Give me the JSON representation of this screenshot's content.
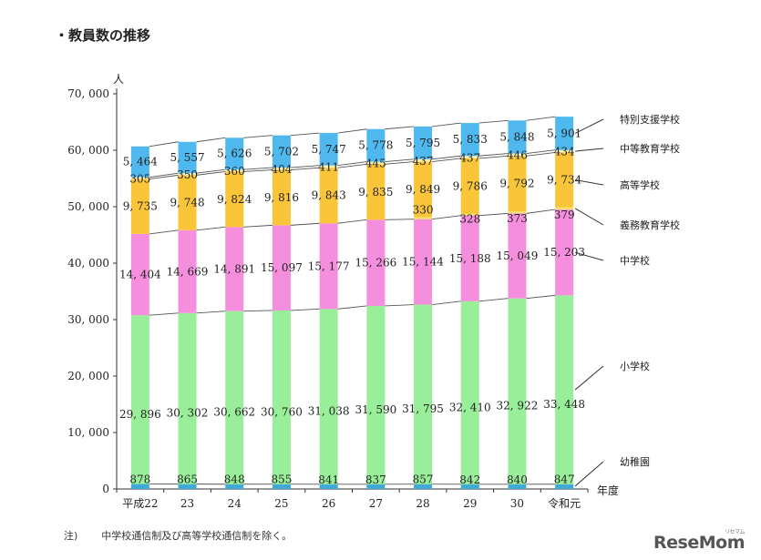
{
  "heading": "・教員数の推移",
  "note": {
    "marker": "注)",
    "text": "中学校通信制及び高等学校通信制を除く。"
  },
  "watermark": {
    "text": "ReseMom",
    "small": "リセマム"
  },
  "chart_data": {
    "type": "bar",
    "stacked": true,
    "ylabel": "人",
    "xlabel": "年度",
    "ylim": [
      0,
      70000
    ],
    "yticks": [
      0,
      10000,
      20000,
      30000,
      40000,
      50000,
      60000,
      70000
    ],
    "ytick_labels": [
      "0",
      "10, 000",
      "20, 000",
      "30, 000",
      "40, 000",
      "50, 000",
      "60, 000",
      "70, 000"
    ],
    "categories": [
      "平成22",
      "23",
      "24",
      "25",
      "26",
      "27",
      "28",
      "29",
      "30",
      "令和元"
    ],
    "series": [
      {
        "name": "幼稚園",
        "color": "#3fa9d8",
        "values": [
          878,
          865,
          848,
          855,
          841,
          837,
          857,
          842,
          840,
          847
        ],
        "labels": [
          "878",
          "865",
          "848",
          "855",
          "841",
          "837",
          "857",
          "842",
          "840",
          "847"
        ]
      },
      {
        "name": "小学校",
        "color": "#99ee99",
        "values": [
          29896,
          30302,
          30662,
          30760,
          31038,
          31590,
          31795,
          32410,
          32922,
          33448
        ],
        "labels": [
          "29, 896",
          "30, 302",
          "30, 662",
          "30, 760",
          "31, 038",
          "31, 590",
          "31, 795",
          "32, 410",
          "32, 922",
          "33, 448"
        ]
      },
      {
        "name": "中学校",
        "color": "#f58edc",
        "values": [
          14404,
          14669,
          14891,
          15097,
          15177,
          15266,
          15144,
          15188,
          15049,
          15203
        ],
        "labels": [
          "14, 404",
          "14, 669",
          "14, 891",
          "15, 097",
          "15, 177",
          "15, 266",
          "15, 144",
          "15, 188",
          "15, 049",
          "15, 203"
        ]
      },
      {
        "name": "義務教育学校",
        "color": "#f7e06a",
        "values": [
          0,
          0,
          0,
          0,
          0,
          0,
          330,
          328,
          373,
          379
        ],
        "labels": [
          "",
          "",
          "",
          "",
          "",
          "",
          "330",
          "328",
          "373",
          "379"
        ]
      },
      {
        "name": "高等学校",
        "color": "#fbc53a",
        "values": [
          9735,
          9748,
          9824,
          9816,
          9843,
          9835,
          9849,
          9786,
          9792,
          9734
        ],
        "labels": [
          "9, 735",
          "9, 748",
          "9, 824",
          "9, 816",
          "9, 843",
          "9, 835",
          "9, 849",
          "9, 786",
          "9, 792",
          "9, 734"
        ]
      },
      {
        "name": "中等教育学校",
        "color": "#f9f0b0",
        "values": [
          305,
          350,
          360,
          404,
          411,
          445,
          437,
          437,
          446,
          434
        ],
        "labels": [
          "305",
          "350",
          "360",
          "404",
          "411",
          "445",
          "437",
          "437",
          "446",
          "434"
        ]
      },
      {
        "name": "特別支援学校",
        "color": "#4fb8ee",
        "values": [
          5464,
          5557,
          5626,
          5702,
          5747,
          5778,
          5795,
          5833,
          5848,
          5901
        ],
        "labels": [
          "5, 464",
          "5, 557",
          "5, 626",
          "5, 702",
          "5, 747",
          "5, 778",
          "5, 795",
          "5, 833",
          "5, 848",
          "5, 901"
        ]
      }
    ],
    "legend": "right, leader lines"
  }
}
